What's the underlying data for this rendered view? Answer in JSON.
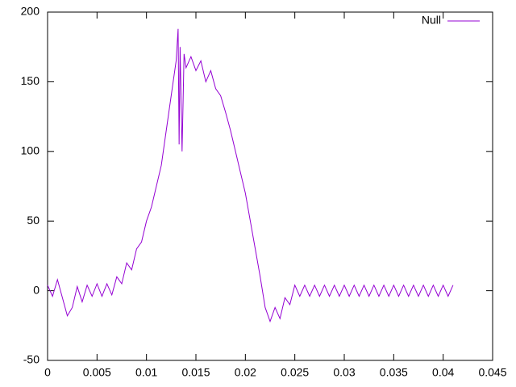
{
  "chart_data": {
    "type": "line",
    "x": [
      0,
      0.0005,
      0.001,
      0.0015,
      0.002,
      0.0025,
      0.003,
      0.0035,
      0.004,
      0.0045,
      0.005,
      0.0055,
      0.006,
      0.0065,
      0.007,
      0.0075,
      0.008,
      0.0085,
      0.009,
      0.0095,
      0.01,
      0.0105,
      0.011,
      0.0115,
      0.012,
      0.0125,
      0.013,
      0.0132,
      0.0133,
      0.0134,
      0.0136,
      0.0138,
      0.014,
      0.0145,
      0.015,
      0.0155,
      0.016,
      0.0165,
      0.017,
      0.0175,
      0.018,
      0.0185,
      0.019,
      0.0195,
      0.02,
      0.0205,
      0.021,
      0.0215,
      0.022,
      0.0225,
      0.023,
      0.0235,
      0.024,
      0.0245,
      0.025,
      0.0255,
      0.026,
      0.0265,
      0.027,
      0.0275,
      0.028,
      0.0285,
      0.029,
      0.0295,
      0.03,
      0.0305,
      0.031,
      0.0315,
      0.032,
      0.0325,
      0.033,
      0.0335,
      0.034,
      0.0345,
      0.035,
      0.0355,
      0.036,
      0.0365,
      0.037,
      0.0375,
      0.038,
      0.0385,
      0.039,
      0.0395,
      0.04,
      0.0405,
      0.041
    ],
    "series": [
      {
        "name": "Null",
        "color": "#9400d3",
        "values": [
          4,
          -4,
          8,
          -5,
          -18,
          -12,
          3,
          -8,
          4,
          -4,
          5,
          -4,
          5,
          -3,
          10,
          5,
          20,
          15,
          30,
          35,
          50,
          60,
          75,
          90,
          115,
          140,
          165,
          188,
          105,
          175,
          100,
          170,
          160,
          168,
          158,
          165,
          150,
          158,
          145,
          140,
          128,
          115,
          100,
          85,
          70,
          50,
          30,
          10,
          -12,
          -22,
          -12,
          -20,
          -5,
          -10,
          4,
          -4,
          4,
          -4,
          4,
          -4,
          4,
          -4,
          4,
          -4,
          4,
          -4,
          4,
          -4,
          4,
          -4,
          4,
          -4,
          4,
          -4,
          4,
          -4,
          4,
          -4,
          4,
          -4,
          4,
          -4,
          4,
          -4,
          4,
          -4,
          4
        ]
      }
    ],
    "xlim": [
      0,
      0.045
    ],
    "xticks": [
      0,
      0.005,
      0.01,
      0.015,
      0.02,
      0.025,
      0.03,
      0.035,
      0.04,
      0.045
    ],
    "ylim": [
      -50,
      200
    ],
    "yticks": [
      -50,
      0,
      50,
      100,
      150,
      200
    ],
    "legend": "top-right"
  }
}
